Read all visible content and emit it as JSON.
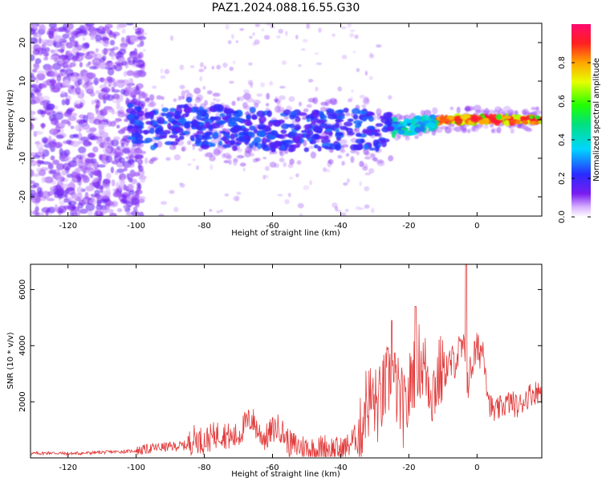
{
  "title": "PAZ1.2024.088.16.55.G30",
  "colors": {
    "snr_line": "#e23a3a",
    "axis": "#000000"
  },
  "chart_data": [
    {
      "type": "heatmap",
      "title": "PAZ1.2024.088.16.55.G30",
      "xlabel": "Height of straight line (km)",
      "ylabel": "Frequency (Hz)",
      "xlim": [
        -131,
        19
      ],
      "ylim": [
        -25,
        25
      ],
      "xticks": [
        -120,
        -100,
        -80,
        -60,
        -40,
        -20,
        0
      ],
      "yticks": [
        -20,
        -10,
        0,
        10,
        20
      ],
      "xticklabels": [
        "-120",
        "-100",
        "-80",
        "-60",
        "-40",
        "-20",
        "0"
      ],
      "yticklabels": [
        "-20",
        "-10",
        "0",
        "10",
        "20"
      ],
      "colorbar": {
        "label": "Normalized spectral amplitude",
        "range": [
          0,
          1
        ],
        "ticks": [
          0.0,
          0.2,
          0.4,
          0.6,
          0.8
        ],
        "ticklabels": [
          "0.0",
          "0.2",
          "0.4",
          "0.6",
          "0.8"
        ],
        "colormap": "gist_rainbow-like (white to purple to blue to cyan to green to yellow to red to magenta)"
      },
      "ridge": [
        {
          "x": -100,
          "f": -1.0
        },
        {
          "x": -95,
          "f": -3.0
        },
        {
          "x": -90,
          "f": -2.0
        },
        {
          "x": -85,
          "f": 0.5
        },
        {
          "x": -80,
          "f": -2.0
        },
        {
          "x": -75,
          "f": -1.5
        },
        {
          "x": -70,
          "f": -3.0
        },
        {
          "x": -65,
          "f": -2.0
        },
        {
          "x": -60,
          "f": -3.0
        },
        {
          "x": -55,
          "f": -3.0
        },
        {
          "x": -50,
          "f": -3.0
        },
        {
          "x": -45,
          "f": -2.5
        },
        {
          "x": -40,
          "f": -2.5
        },
        {
          "x": -35,
          "f": -2.5
        },
        {
          "x": -30,
          "f": -3.5
        },
        {
          "x": -25,
          "f": -2.0
        },
        {
          "x": -20,
          "f": -2.0
        },
        {
          "x": -15,
          "f": -1.0
        },
        {
          "x": -10,
          "f": 0.0
        },
        {
          "x": -5,
          "f": 0.0
        },
        {
          "x": 0,
          "f": 0.0
        },
        {
          "x": 5,
          "f": 0.0
        },
        {
          "x": 10,
          "f": 0.0
        },
        {
          "x": 15,
          "f": 0.0
        }
      ]
    },
    {
      "type": "line",
      "xlabel": "Height of straight line (km)",
      "ylabel": "SNR (10 * v/v)",
      "xlim": [
        -131,
        19
      ],
      "ylim": [
        0,
        6900
      ],
      "xticks": [
        -120,
        -100,
        -80,
        -60,
        -40,
        -20,
        0
      ],
      "yticks": [
        2000,
        4000,
        6000
      ],
      "xticklabels": [
        "-120",
        "-100",
        "-80",
        "-60",
        "-40",
        "-20",
        "0"
      ],
      "yticklabels": [
        "2000",
        "4000",
        "6000"
      ],
      "series": [
        {
          "x": [
            -131,
            -125,
            -120,
            -115,
            -110,
            -105,
            -100,
            -95,
            -90,
            -85,
            -83,
            -80,
            -77,
            -75,
            -72,
            -70,
            -68,
            -66,
            -64,
            -62,
            -60,
            -58,
            -55,
            -52,
            -50,
            -47,
            -45,
            -42,
            -40,
            -38,
            -36,
            -34,
            -33,
            -31,
            -29,
            -27,
            -25,
            -23,
            -21,
            -19,
            -17,
            -15,
            -13,
            -11,
            -9,
            -7,
            -5,
            -4,
            -3,
            -2,
            -1,
            0,
            2,
            3.5,
            5,
            8,
            10,
            12,
            14,
            16,
            19
          ],
          "y": [
            150,
            180,
            150,
            170,
            200,
            220,
            250,
            350,
            400,
            450,
            700,
            600,
            800,
            900,
            700,
            800,
            1200,
            1400,
            900,
            700,
            1000,
            1100,
            500,
            400,
            350,
            250,
            400,
            300,
            250,
            400,
            700,
            800,
            1900,
            2100,
            1800,
            2500,
            3000,
            2200,
            1500,
            3000,
            3500,
            3100,
            2400,
            3000,
            3200,
            3400,
            3800,
            3900,
            2600,
            3000,
            3600,
            3800,
            3900,
            2000,
            1600,
            1900,
            2000,
            1800,
            2100,
            2300,
            2400
          ]
        }
      ]
    }
  ]
}
